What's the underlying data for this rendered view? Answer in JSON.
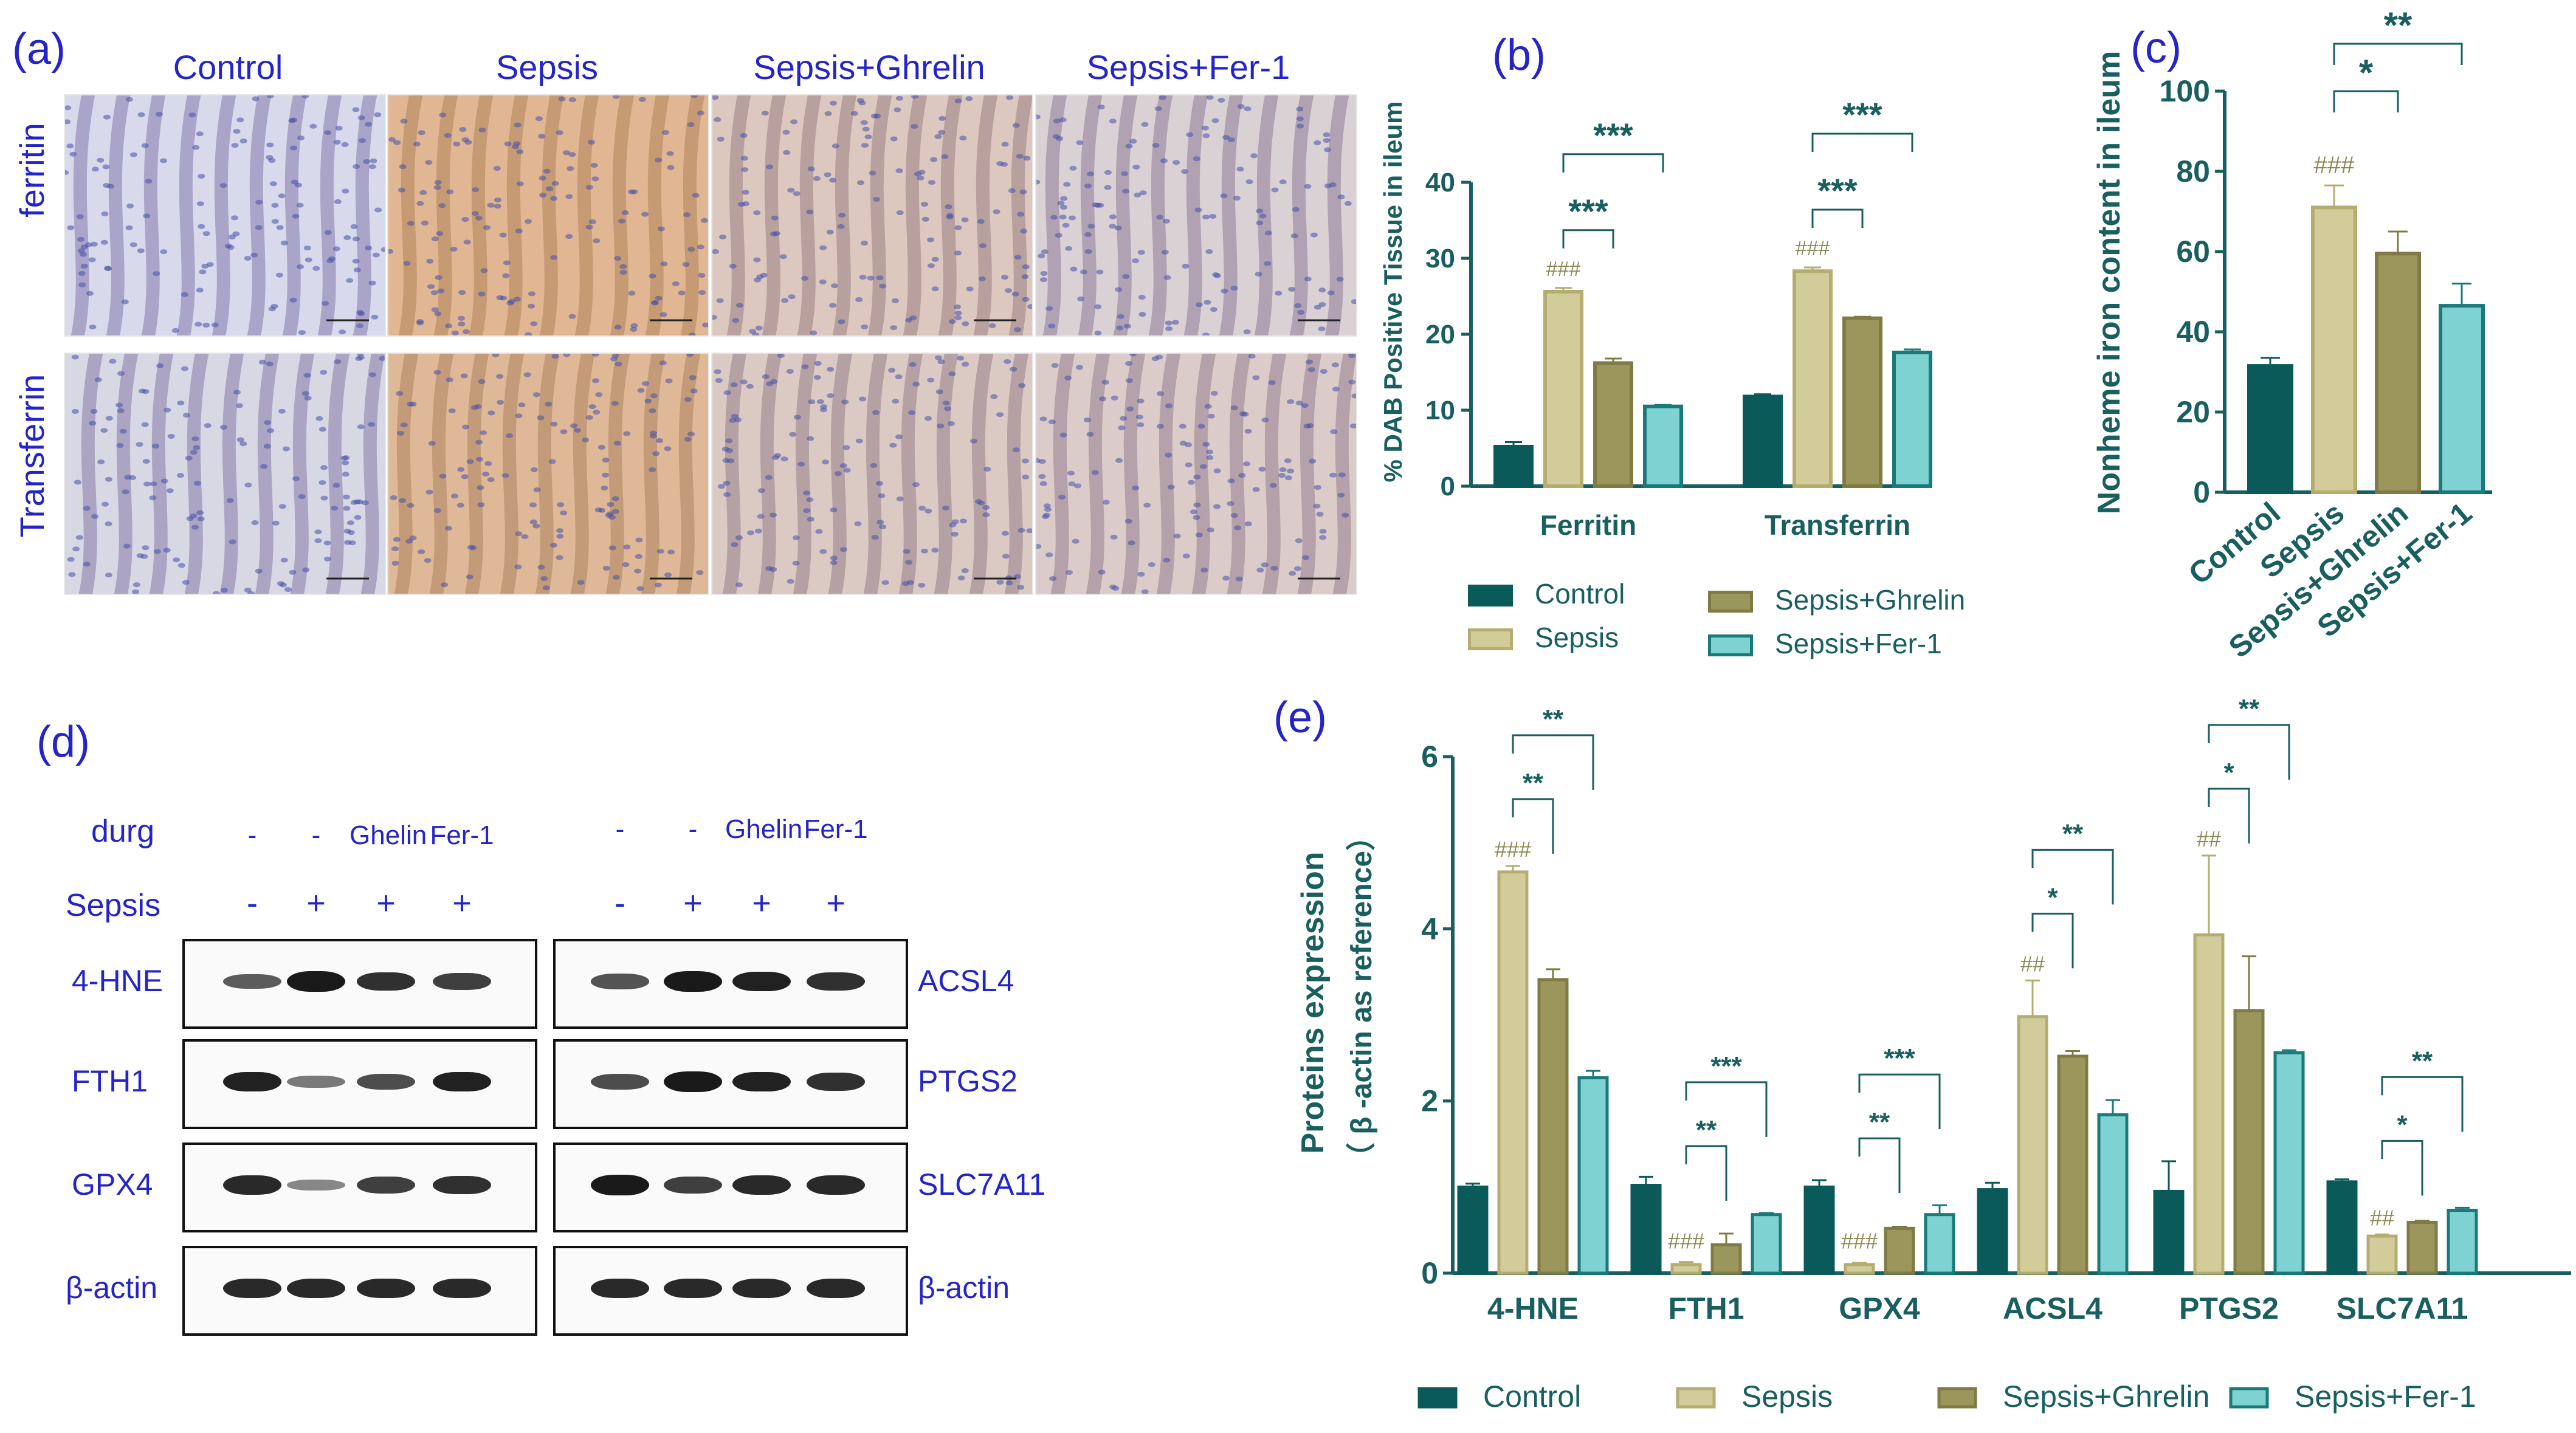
{
  "panel_a": {
    "label": "(a)",
    "columns": [
      "Control",
      "Sepsis",
      "Sepsis+Ghrelin",
      "Sepsis+Fer-1"
    ],
    "rows": [
      "ferritin",
      "Transferrin"
    ],
    "tint": [
      0.05,
      0.85,
      0.45,
      0.25,
      0.1,
      0.8,
      0.4,
      0.35
    ]
  },
  "panel_b": {
    "label": "(b)",
    "ylabel": "% DAB Positive Tissue in ileum",
    "legend": [
      "Control",
      "Sepsis",
      "Sepsis+Ghrelin",
      "Sepsis+Fer-1"
    ]
  },
  "panel_c": {
    "label": "(c)",
    "ylabel": "Nonheme iron content in ileum"
  },
  "panel_d": {
    "label": "(d)",
    "drug_label": "durg",
    "sepsis_label": "Sepsis",
    "drug_values_left": [
      "-",
      "-",
      "Ghelin",
      "Fer-1"
    ],
    "drug_values_right": [
      "-",
      "-",
      "Ghelin",
      "Fer-1"
    ],
    "sepsis_values": [
      "-",
      "+",
      "+",
      "+"
    ],
    "left_proteins": [
      "4-HNE",
      "FTH1",
      "GPX4",
      "β-actin"
    ],
    "right_proteins": [
      "ACSL4",
      "PTGS2",
      "SLC7A11",
      "β-actin"
    ],
    "band_intensity_left": [
      [
        0.55,
        1.0,
        0.85,
        0.75
      ],
      [
        0.95,
        0.35,
        0.65,
        0.95
      ],
      [
        0.9,
        0.25,
        0.75,
        0.85
      ],
      [
        0.9,
        0.9,
        0.9,
        0.9
      ]
    ],
    "band_intensity_right": [
      [
        0.6,
        1.0,
        0.95,
        0.85
      ],
      [
        0.65,
        1.0,
        0.95,
        0.85
      ],
      [
        1.0,
        0.75,
        0.9,
        0.9
      ],
      [
        0.9,
        0.9,
        0.9,
        0.9
      ]
    ]
  },
  "panel_e": {
    "label": "(e)",
    "ylabel_line1": "Proteins expression",
    "ylabel_line2": "（ β -actin as reference）",
    "legend": [
      "Control",
      "Sepsis",
      "Sepsis+Ghrelin",
      "Sepsis+Fer-1"
    ]
  },
  "colors": {
    "control": "#0b5a5a",
    "sepsis": "#d2cc9a",
    "ghrelin": "#9a965c",
    "fer1": "#7fd2d2",
    "axis": "#1a5f5f",
    "text_blue": "#2424c8"
  },
  "chart_data": [
    {
      "type": "bar",
      "panel": "(b)",
      "categories": [
        "Ferritin",
        "Transferrin"
      ],
      "series": [
        {
          "name": "Control",
          "values": [
            5.2,
            11.8
          ],
          "errors": [
            0.6,
            0.3
          ]
        },
        {
          "name": "Sepsis",
          "values": [
            25.6,
            28.3
          ],
          "errors": [
            0.5,
            0.5
          ]
        },
        {
          "name": "Sepsis+Ghrelin",
          "values": [
            16.2,
            22.1
          ],
          "errors": [
            0.6,
            0.2
          ]
        },
        {
          "name": "Sepsis+Fer-1",
          "values": [
            10.5,
            17.6
          ],
          "errors": [
            0.2,
            0.4
          ]
        }
      ],
      "ylim": [
        0,
        40
      ],
      "yticks": [
        0,
        10,
        20,
        30,
        40
      ],
      "ylabel": "% DAB Positive Tissue in ileum",
      "annotations": {
        "hash": [
          "###",
          "###"
        ],
        "sig_ghrelin": [
          "***",
          "***"
        ],
        "sig_fer1": [
          "***",
          "***"
        ]
      }
    },
    {
      "type": "bar",
      "panel": "(c)",
      "categories": [
        "Control",
        "Sepsis",
        "Sepsis+Ghrelin",
        "Sepsis+Fer-1"
      ],
      "values": [
        31.5,
        71,
        59.5,
        46.5
      ],
      "errors": [
        2,
        5.5,
        5.5,
        5.5
      ],
      "ylim": [
        0,
        100
      ],
      "yticks": [
        0,
        20,
        40,
        60,
        80,
        100
      ],
      "ylabel": "Nonheme iron content in ileum",
      "annotations": {
        "hash": "###",
        "sig_ghrelin": "*",
        "sig_fer1": "**"
      }
    },
    {
      "type": "bar",
      "panel": "(e)",
      "categories": [
        "4-HNE",
        "FTH1",
        "GPX4",
        "ACSL4",
        "PTGS2",
        "SLC7A11"
      ],
      "series": [
        {
          "name": "Control",
          "values": [
            1.0,
            1.02,
            1.0,
            0.97,
            0.95,
            1.06
          ],
          "errors": [
            0.04,
            0.1,
            0.08,
            0.08,
            0.35,
            0.03
          ]
        },
        {
          "name": "Sepsis",
          "values": [
            4.66,
            0.1,
            0.1,
            2.98,
            3.93,
            0.43
          ],
          "errors": [
            0.07,
            0.03,
            0.02,
            0.42,
            0.92,
            0.02
          ]
        },
        {
          "name": "Sepsis+Ghrelin",
          "values": [
            3.41,
            0.33,
            0.52,
            2.52,
            3.05,
            0.59
          ],
          "errors": [
            0.12,
            0.13,
            0.02,
            0.06,
            0.63,
            0.02
          ]
        },
        {
          "name": "Sepsis+Fer-1",
          "values": [
            2.27,
            0.68,
            0.68,
            1.84,
            2.56,
            0.73
          ],
          "errors": [
            0.08,
            0.02,
            0.11,
            0.17,
            0.03,
            0.03
          ]
        }
      ],
      "ylim": [
        0,
        6
      ],
      "yticks": [
        0,
        2,
        4,
        6
      ],
      "annotations": {
        "hash": [
          "###",
          "###",
          "###",
          "##",
          "##",
          "##"
        ],
        "sig_ghrelin": [
          "**",
          "**",
          "**",
          "*",
          "*",
          "*"
        ],
        "sig_fer1": [
          "**",
          "***",
          "***",
          "**",
          "**",
          "**"
        ]
      }
    }
  ]
}
